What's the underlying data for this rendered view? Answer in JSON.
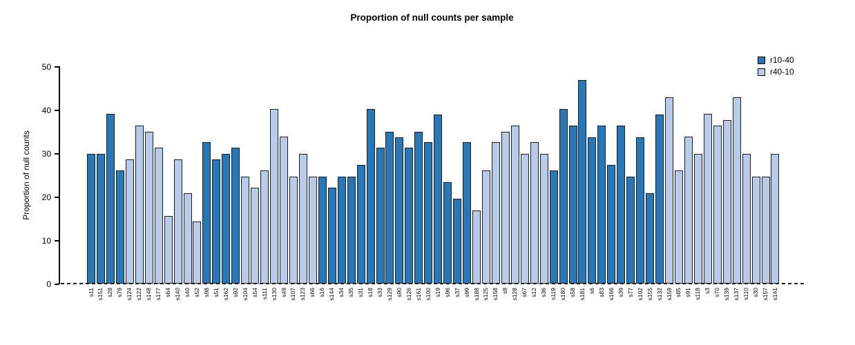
{
  "title": "Proportion of null counts per sample",
  "colors": {
    "r10-40": "#2878b8",
    "r40-10": "#b8cbe8",
    "outline": "#1c1c1c",
    "axis": "#000000"
  },
  "legend": {
    "items": [
      {
        "label": "r10-40",
        "series": "r10-40"
      },
      {
        "label": "r40-10",
        "series": "r40-10"
      }
    ]
  },
  "chart_data": {
    "type": "bar",
    "title": "Proportion of null counts per sample",
    "xlabel": "",
    "ylabel": "Proportion of null counts",
    "ylim": [
      0,
      50
    ],
    "yticks": [
      0,
      10,
      20,
      30,
      40,
      50
    ],
    "grid": false,
    "legend_position": "top-right",
    "zero_line_style": "dashed",
    "series_names": [
      "r10-40",
      "r40-10"
    ],
    "bars": [
      {
        "label": "s11",
        "value": 29.8,
        "series": "r10-40"
      },
      {
        "label": "s151",
        "value": 29.8,
        "series": "r10-40"
      },
      {
        "label": "s28",
        "value": 39.0,
        "series": "r10-40"
      },
      {
        "label": "s79",
        "value": 26.0,
        "series": "r10-40"
      },
      {
        "label": "s124",
        "value": 28.6,
        "series": "r40-10"
      },
      {
        "label": "s122",
        "value": 36.4,
        "series": "r40-10"
      },
      {
        "label": "s148",
        "value": 35.0,
        "series": "r40-10"
      },
      {
        "label": "s177",
        "value": 31.2,
        "series": "r40-10"
      },
      {
        "label": "s64",
        "value": 15.6,
        "series": "r40-10"
      },
      {
        "label": "s140",
        "value": 28.5,
        "series": "r40-10"
      },
      {
        "label": "s40",
        "value": 20.8,
        "series": "r40-10"
      },
      {
        "label": "s52",
        "value": 14.3,
        "series": "r40-10"
      },
      {
        "label": "s98",
        "value": 32.5,
        "series": "r10-40"
      },
      {
        "label": "s51",
        "value": 28.6,
        "series": "r10-40"
      },
      {
        "label": "s162",
        "value": 29.9,
        "series": "r10-40"
      },
      {
        "label": "s92",
        "value": 31.2,
        "series": "r10-40"
      },
      {
        "label": "s104",
        "value": 24.6,
        "series": "r40-10"
      },
      {
        "label": "s54",
        "value": 22.1,
        "series": "r40-10"
      },
      {
        "label": "s111",
        "value": 26.0,
        "series": "r40-10"
      },
      {
        "label": "s130",
        "value": 40.2,
        "series": "r40-10"
      },
      {
        "label": "s49",
        "value": 33.8,
        "series": "r40-10"
      },
      {
        "label": "s107",
        "value": 24.6,
        "series": "r40-10"
      },
      {
        "label": "s123",
        "value": 29.8,
        "series": "r40-10"
      },
      {
        "label": "s66",
        "value": 24.6,
        "series": "r40-10"
      },
      {
        "label": "s16",
        "value": 24.6,
        "series": "r10-40"
      },
      {
        "label": "s144",
        "value": 22.1,
        "series": "r10-40"
      },
      {
        "label": "s34",
        "value": 24.6,
        "series": "r10-40"
      },
      {
        "label": "s35",
        "value": 24.6,
        "series": "r10-40"
      },
      {
        "label": "s31",
        "value": 27.3,
        "series": "r10-40"
      },
      {
        "label": "s18",
        "value": 40.2,
        "series": "r10-40"
      },
      {
        "label": "s33",
        "value": 31.2,
        "series": "r10-40"
      },
      {
        "label": "s129",
        "value": 35.0,
        "series": "r10-40"
      },
      {
        "label": "s90",
        "value": 33.7,
        "series": "r10-40"
      },
      {
        "label": "s126",
        "value": 31.2,
        "series": "r10-40"
      },
      {
        "label": "s161",
        "value": 35.0,
        "series": "r10-40"
      },
      {
        "label": "s100",
        "value": 32.5,
        "series": "r10-40"
      },
      {
        "label": "s19",
        "value": 38.9,
        "series": "r10-40"
      },
      {
        "label": "s96",
        "value": 23.3,
        "series": "r10-40"
      },
      {
        "label": "s37",
        "value": 19.5,
        "series": "r10-40"
      },
      {
        "label": "s99",
        "value": 32.5,
        "series": "r10-40"
      },
      {
        "label": "s188",
        "value": 16.9,
        "series": "r40-10"
      },
      {
        "label": "s125",
        "value": 26.0,
        "series": "r40-10"
      },
      {
        "label": "s158",
        "value": 32.5,
        "series": "r40-10"
      },
      {
        "label": "s9",
        "value": 35.0,
        "series": "r40-10"
      },
      {
        "label": "s128",
        "value": 36.4,
        "series": "r40-10"
      },
      {
        "label": "s67",
        "value": 29.9,
        "series": "r40-10"
      },
      {
        "label": "s12",
        "value": 32.5,
        "series": "r40-10"
      },
      {
        "label": "s36",
        "value": 29.8,
        "series": "r40-10"
      },
      {
        "label": "s119",
        "value": 26.0,
        "series": "r10-40"
      },
      {
        "label": "s180",
        "value": 40.2,
        "series": "r10-40"
      },
      {
        "label": "s58",
        "value": 36.4,
        "series": "r10-40"
      },
      {
        "label": "s181",
        "value": 46.8,
        "series": "r10-40"
      },
      {
        "label": "s6",
        "value": 33.7,
        "series": "r10-40"
      },
      {
        "label": "s83",
        "value": 36.4,
        "series": "r10-40"
      },
      {
        "label": "s166",
        "value": 27.3,
        "series": "r10-40"
      },
      {
        "label": "s39",
        "value": 36.4,
        "series": "r10-40"
      },
      {
        "label": "s77",
        "value": 24.6,
        "series": "r10-40"
      },
      {
        "label": "s102",
        "value": 33.7,
        "series": "r10-40"
      },
      {
        "label": "s155",
        "value": 20.8,
        "series": "r10-40"
      },
      {
        "label": "s132",
        "value": 38.9,
        "series": "r10-40"
      },
      {
        "label": "s159",
        "value": 42.8,
        "series": "r40-10"
      },
      {
        "label": "s85",
        "value": 26.0,
        "series": "r40-10"
      },
      {
        "label": "s91",
        "value": 33.8,
        "series": "r40-10"
      },
      {
        "label": "s118",
        "value": 29.9,
        "series": "r40-10"
      },
      {
        "label": "s3",
        "value": 39.0,
        "series": "r40-10"
      },
      {
        "label": "s70",
        "value": 36.4,
        "series": "r40-10"
      },
      {
        "label": "s139",
        "value": 37.6,
        "series": "r40-10"
      },
      {
        "label": "s137",
        "value": 42.8,
        "series": "r40-10"
      },
      {
        "label": "s110",
        "value": 29.9,
        "series": "r40-10"
      },
      {
        "label": "s30",
        "value": 24.6,
        "series": "r40-10"
      },
      {
        "label": "s157",
        "value": 24.6,
        "series": "r40-10"
      },
      {
        "label": "s141",
        "value": 29.8,
        "series": "r40-10"
      }
    ]
  }
}
